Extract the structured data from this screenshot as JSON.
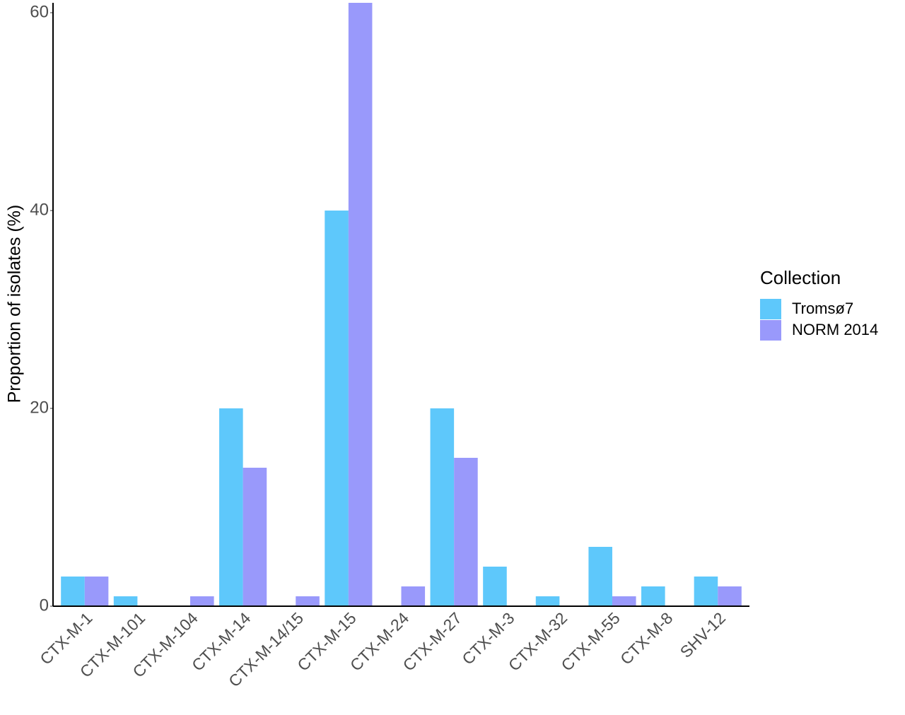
{
  "chart_data": {
    "type": "bar",
    "y_label": "Proportion of isolates (%)",
    "categories": [
      "CTX-M-1",
      "CTX-M-101",
      "CTX-M-104",
      "CTX-M-14",
      "CTX-M-14/15",
      "CTX-M-15",
      "CTX-M-24",
      "CTX-M-27",
      "CTX-M-3",
      "CTX-M-32",
      "CTX-M-55",
      "CTX-M-8",
      "SHV-12"
    ],
    "series": [
      {
        "name": "Tromsø7",
        "color": "#5ec8fb",
        "values": [
          3,
          1,
          0,
          20,
          0,
          40,
          0,
          20,
          4,
          1,
          6,
          2,
          3
        ]
      },
      {
        "name": "NORM 2014",
        "color": "#9999fb",
        "values": [
          3,
          0,
          1,
          14,
          1,
          61,
          2,
          15,
          0,
          0,
          1,
          0,
          2
        ]
      }
    ],
    "legend_title": "Collection",
    "legend_position": "right",
    "ylim": [
      0,
      61
    ],
    "yticks": [
      0,
      20,
      40,
      60
    ],
    "grid": false
  }
}
